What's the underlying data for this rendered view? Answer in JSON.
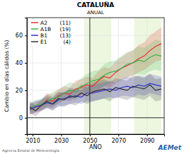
{
  "chart_data": {
    "type": "line",
    "title": "CATALUÑA",
    "subtitle": "ANUAL",
    "x_label": "AÑO",
    "y_label": "Cambio en días cálidos (%)",
    "xlim": [
      2006,
      2102
    ],
    "ylim": [
      -12,
      73
    ],
    "xticks": [
      2010,
      2030,
      2050,
      2070,
      2090
    ],
    "yticks": [
      0,
      20,
      40,
      60
    ],
    "legend": "top-left",
    "periods": [
      [
        2046,
        2065
      ],
      [
        2081,
        2100
      ]
    ],
    "vline": 2050,
    "hline": 0,
    "annotations": [
      "Agencia Estatal de Meteorología",
      "AEMet"
    ],
    "x": [
      2008,
      2012,
      2016,
      2020,
      2024,
      2028,
      2032,
      2036,
      2040,
      2044,
      2048,
      2052,
      2056,
      2060,
      2064,
      2068,
      2072,
      2076,
      2080,
      2084,
      2088,
      2092,
      2096,
      2100
    ],
    "series": [
      {
        "name": "A2",
        "n_label": "(11)",
        "color": "#e8312f",
        "values": [
          6,
          8,
          9,
          13,
          12,
          16,
          18,
          17,
          21,
          22,
          24,
          23,
          27,
          30,
          29,
          33,
          36,
          38,
          40,
          43,
          45,
          49,
          52,
          54
        ],
        "lower": [
          2,
          4,
          5,
          8,
          7,
          11,
          13,
          12,
          15,
          16,
          18,
          17,
          20,
          23,
          22,
          25,
          28,
          29,
          31,
          33,
          35,
          38,
          41,
          42
        ],
        "upper": [
          10,
          12,
          13,
          18,
          17,
          21,
          23,
          22,
          27,
          28,
          30,
          29,
          34,
          37,
          36,
          41,
          44,
          47,
          49,
          53,
          55,
          60,
          63,
          66
        ]
      },
      {
        "name": "A1B",
        "n_label": "(19)",
        "color": "#3cb44b",
        "values": [
          7,
          9,
          10,
          12,
          14,
          15,
          18,
          20,
          19,
          23,
          25,
          27,
          28,
          31,
          33,
          34,
          36,
          39,
          40,
          42,
          41,
          44,
          46,
          45
        ],
        "lower": [
          3,
          5,
          6,
          8,
          9,
          10,
          13,
          14,
          13,
          17,
          18,
          20,
          21,
          23,
          25,
          26,
          27,
          30,
          31,
          32,
          31,
          34,
          35,
          34
        ],
        "upper": [
          11,
          13,
          14,
          16,
          19,
          20,
          23,
          26,
          25,
          29,
          32,
          34,
          35,
          39,
          41,
          42,
          45,
          48,
          49,
          52,
          51,
          54,
          57,
          56
        ]
      },
      {
        "name": "B1",
        "n_label": "(13)",
        "color": "#3333cc",
        "values": [
          6,
          8,
          9,
          11,
          10,
          13,
          14,
          15,
          16,
          15,
          18,
          18,
          19,
          20,
          21,
          20,
          22,
          23,
          22,
          24,
          23,
          25,
          24,
          23
        ],
        "lower": [
          2,
          4,
          5,
          7,
          6,
          8,
          9,
          10,
          11,
          10,
          12,
          12,
          13,
          14,
          15,
          14,
          16,
          16,
          15,
          17,
          16,
          18,
          17,
          16
        ],
        "upper": [
          10,
          12,
          13,
          15,
          14,
          18,
          19,
          20,
          21,
          20,
          24,
          24,
          25,
          26,
          27,
          26,
          28,
          30,
          29,
          31,
          30,
          32,
          31,
          30
        ]
      },
      {
        "name": "E1",
        "n_label": "(4)",
        "color": "#333333",
        "values": [
          8,
          5,
          9,
          12,
          10,
          14,
          13,
          16,
          15,
          18,
          16,
          19,
          20,
          21,
          19,
          22,
          21,
          20,
          23,
          22,
          21,
          24,
          20,
          21
        ],
        "lower": [
          4,
          1,
          5,
          7,
          5,
          9,
          8,
          10,
          9,
          12,
          10,
          12,
          13,
          14,
          12,
          15,
          14,
          13,
          15,
          14,
          13,
          16,
          12,
          13
        ],
        "upper": [
          12,
          9,
          13,
          17,
          15,
          19,
          18,
          22,
          21,
          24,
          22,
          26,
          27,
          28,
          26,
          29,
          28,
          27,
          31,
          30,
          29,
          32,
          28,
          29
        ]
      }
    ]
  }
}
